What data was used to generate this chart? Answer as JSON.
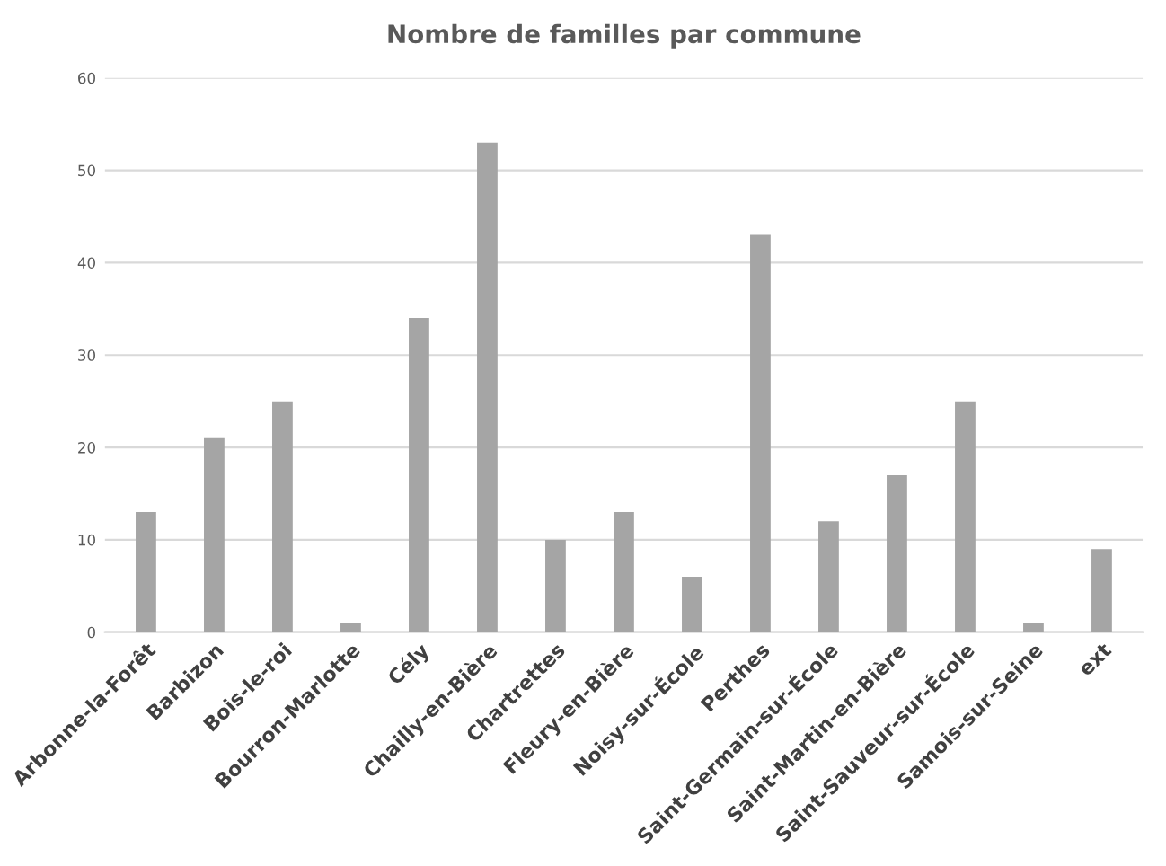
{
  "chart_data": {
    "type": "bar",
    "title": "Nombre de familles par commune",
    "categories": [
      "Arbonne-la-Forêt",
      "Barbizon",
      "Bois-le-roi",
      "Bourron-Marlotte",
      "Cély",
      "Chailly-en-Bière",
      "Chartrettes",
      "Fleury-en-Bière",
      "Noisy-sur-École",
      "Perthes",
      "Saint-Germain-sur-École",
      "Saint-Martin-en-Bière",
      "Saint-Sauveur-sur-École",
      "Samois-sur-Seine",
      "ext"
    ],
    "values": [
      13,
      21,
      25,
      1,
      34,
      53,
      10,
      13,
      6,
      43,
      12,
      17,
      25,
      1,
      9
    ],
    "color": "#a5a5a5",
    "ylim": [
      0,
      60
    ],
    "yticks": [
      0,
      10,
      20,
      30,
      40,
      50,
      60
    ],
    "grid": "y",
    "legend": false
  }
}
